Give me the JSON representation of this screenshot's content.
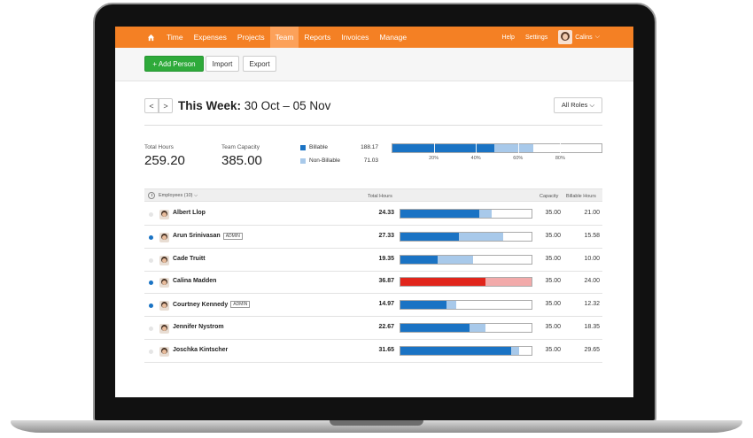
{
  "nav": {
    "items": [
      "Time",
      "Expenses",
      "Projects",
      "Team",
      "Reports",
      "Invoices",
      "Manage"
    ],
    "active": "Team",
    "help": "Help",
    "settings": "Settings",
    "user": "Calins"
  },
  "toolbar": {
    "add_person": "+ Add Person",
    "import": "Import",
    "export": "Export"
  },
  "week": {
    "prev": "<",
    "next": ">",
    "title_bold": "This Week:",
    "range": "30 Oct – 05 Nov",
    "roles": "All Roles ⌵"
  },
  "summary": {
    "total_hours_label": "Total Hours",
    "total_hours": "259.20",
    "capacity_label": "Team Capacity",
    "capacity": "385.00",
    "billable_label": "Billable",
    "billable": "188.17",
    "nonbillable_label": "Non-Billable",
    "nonbillable": "71.03",
    "ticks": [
      "20%",
      "40%",
      "60%",
      "80%"
    ],
    "billable_fraction": 0.489,
    "nonbillable_fraction": 0.184,
    "colors": {
      "billable": "#1a73c4",
      "nonbillable": "#a8c9ea",
      "over": "#e1251b",
      "over_light": "#f2aaaa"
    }
  },
  "table": {
    "headers": {
      "employees": "Employees (10) ⌵",
      "total": "Total Hours",
      "capacity": "Capacity",
      "billable": "Billable Hours"
    },
    "rows": [
      {
        "name": "Albert Llop",
        "admin": false,
        "active": false,
        "total": "24.33",
        "capacity": "35.00",
        "billable": "21.00",
        "b": 21.0,
        "t": 24.33,
        "cap": 35,
        "over": false
      },
      {
        "name": "Arun Srinivasan",
        "admin": true,
        "admin_label": "ADMIN",
        "active": true,
        "total": "27.33",
        "capacity": "35.00",
        "billable": "15.58",
        "b": 15.58,
        "t": 27.33,
        "cap": 35,
        "over": false
      },
      {
        "name": "Cade Truitt",
        "admin": false,
        "active": false,
        "total": "19.35",
        "capacity": "35.00",
        "billable": "10.00",
        "b": 10.0,
        "t": 19.35,
        "cap": 35,
        "over": false
      },
      {
        "name": "Calina Madden",
        "admin": false,
        "active": true,
        "total": "36.87",
        "capacity": "35.00",
        "billable": "24.00",
        "b": 24.0,
        "t": 36.87,
        "cap": 35,
        "over": true
      },
      {
        "name": "Courtney Kennedy",
        "admin": true,
        "admin_label": "ADMIN",
        "active": true,
        "total": "14.97",
        "capacity": "35.00",
        "billable": "12.32",
        "b": 12.32,
        "t": 14.97,
        "cap": 35,
        "over": false
      },
      {
        "name": "Jennifer Nystrom",
        "admin": false,
        "active": false,
        "total": "22.67",
        "capacity": "35.00",
        "billable": "18.35",
        "b": 18.35,
        "t": 22.67,
        "cap": 35,
        "over": false
      },
      {
        "name": "Joschka Kintscher",
        "admin": false,
        "active": false,
        "total": "31.65",
        "capacity": "35.00",
        "billable": "29.65",
        "b": 29.65,
        "t": 31.65,
        "cap": 35,
        "over": false
      }
    ]
  }
}
